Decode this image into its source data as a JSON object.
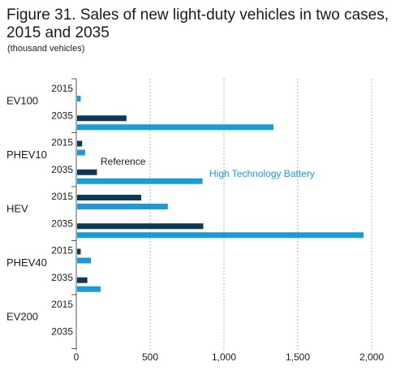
{
  "chart_data": {
    "type": "bar",
    "orientation": "horizontal",
    "title": "Figure 31. Sales of new light-duty vehicles in two cases, 2015 and 2035",
    "subtitle": "(thousand vehicles)",
    "groups": [
      "EV100",
      "PHEV10",
      "HEV",
      "PHEV40",
      "EV200"
    ],
    "years": [
      "2015",
      "2035"
    ],
    "series": [
      {
        "name": "Reference",
        "color": "#0d3a52",
        "values": [
          [
            0,
            340
          ],
          [
            40,
            140
          ],
          [
            440,
            860
          ],
          [
            30,
            75
          ],
          [
            0,
            0
          ]
        ]
      },
      {
        "name": "High Technology Battery",
        "color": "#1a9bd7",
        "values": [
          [
            30,
            1335
          ],
          [
            60,
            855
          ],
          [
            620,
            1945
          ],
          [
            100,
            165
          ],
          [
            0,
            0
          ]
        ]
      }
    ],
    "xlim": [
      0,
      2000
    ],
    "xticks": [
      "0",
      "500",
      "1,000",
      "1,500",
      "2,000"
    ],
    "xtick_values": [
      0,
      500,
      1000,
      1500,
      2000
    ],
    "grid": "vertical dashed",
    "annotations": [
      "Reference",
      "High Technology Battery"
    ]
  }
}
